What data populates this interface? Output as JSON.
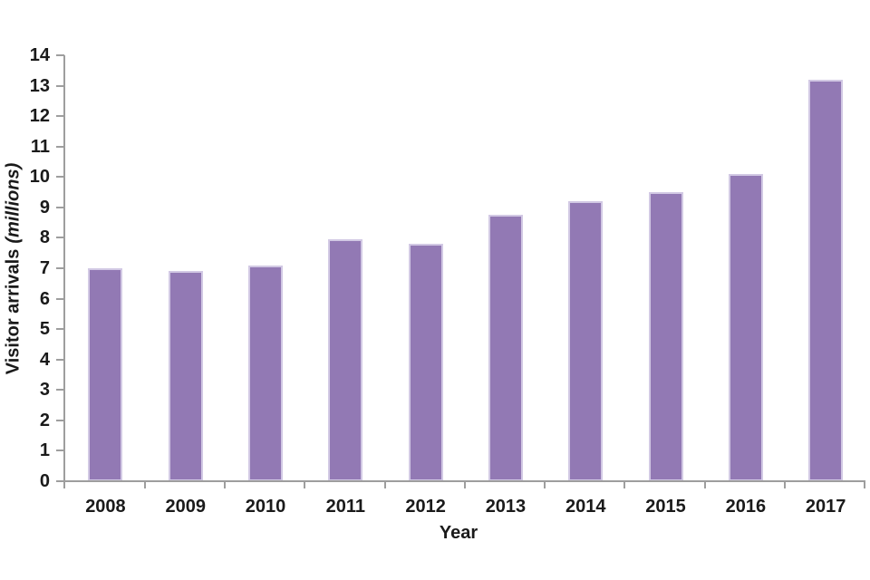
{
  "chart_data": {
    "type": "bar",
    "title": "",
    "categories": [
      "2008",
      "2009",
      "2010",
      "2011",
      "2012",
      "2013",
      "2014",
      "2015",
      "2016",
      "2017"
    ],
    "values": [
      7.0,
      6.9,
      7.1,
      7.95,
      7.8,
      8.75,
      9.2,
      9.5,
      10.1,
      13.2
    ],
    "xlabel": "Year",
    "ylabel": "Visitor arrivals (millions)",
    "ylabel_main": "Visitor arrivals",
    "ylabel_unit": "(millions)",
    "ylim": [
      0,
      14
    ],
    "ytick_step": 1,
    "grid": false,
    "legend": "none",
    "bar_color": "#9279b4",
    "bar_border_color": "#d2c9e4",
    "axis_color": "#9e9e9e",
    "text_color": "#1a1a1a"
  }
}
